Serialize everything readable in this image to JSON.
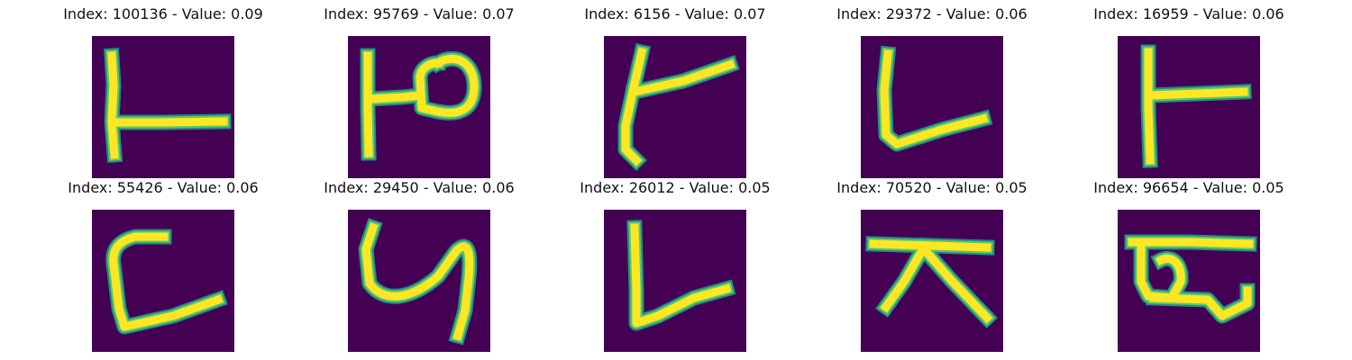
{
  "panels": [
    {
      "title": "Index: 100136 - Value: 0.09",
      "image": "handwritten-glyph"
    },
    {
      "title": "Index: 95769 - Value: 0.07",
      "image": "handwritten-glyph"
    },
    {
      "title": "Index: 6156 - Value: 0.07",
      "image": "handwritten-glyph"
    },
    {
      "title": "Index: 29372 - Value: 0.06",
      "image": "handwritten-glyph"
    },
    {
      "title": "Index: 16959 - Value: 0.06",
      "image": "handwritten-glyph"
    },
    {
      "title": "Index: 55426 - Value: 0.06",
      "image": "handwritten-glyph"
    },
    {
      "title": "Index: 29450 - Value: 0.06",
      "image": "handwritten-glyph"
    },
    {
      "title": "Index: 26012 - Value: 0.05",
      "image": "handwritten-glyph"
    },
    {
      "title": "Index: 70520 - Value: 0.05",
      "image": "handwritten-glyph"
    },
    {
      "title": "Index: 96654 - Value: 0.05",
      "image": "handwritten-glyph"
    }
  ],
  "colors": {
    "background": "#440154",
    "stroke_edge": "#21918c",
    "stroke_mid": "#5ec962",
    "stroke_core": "#fde725"
  }
}
